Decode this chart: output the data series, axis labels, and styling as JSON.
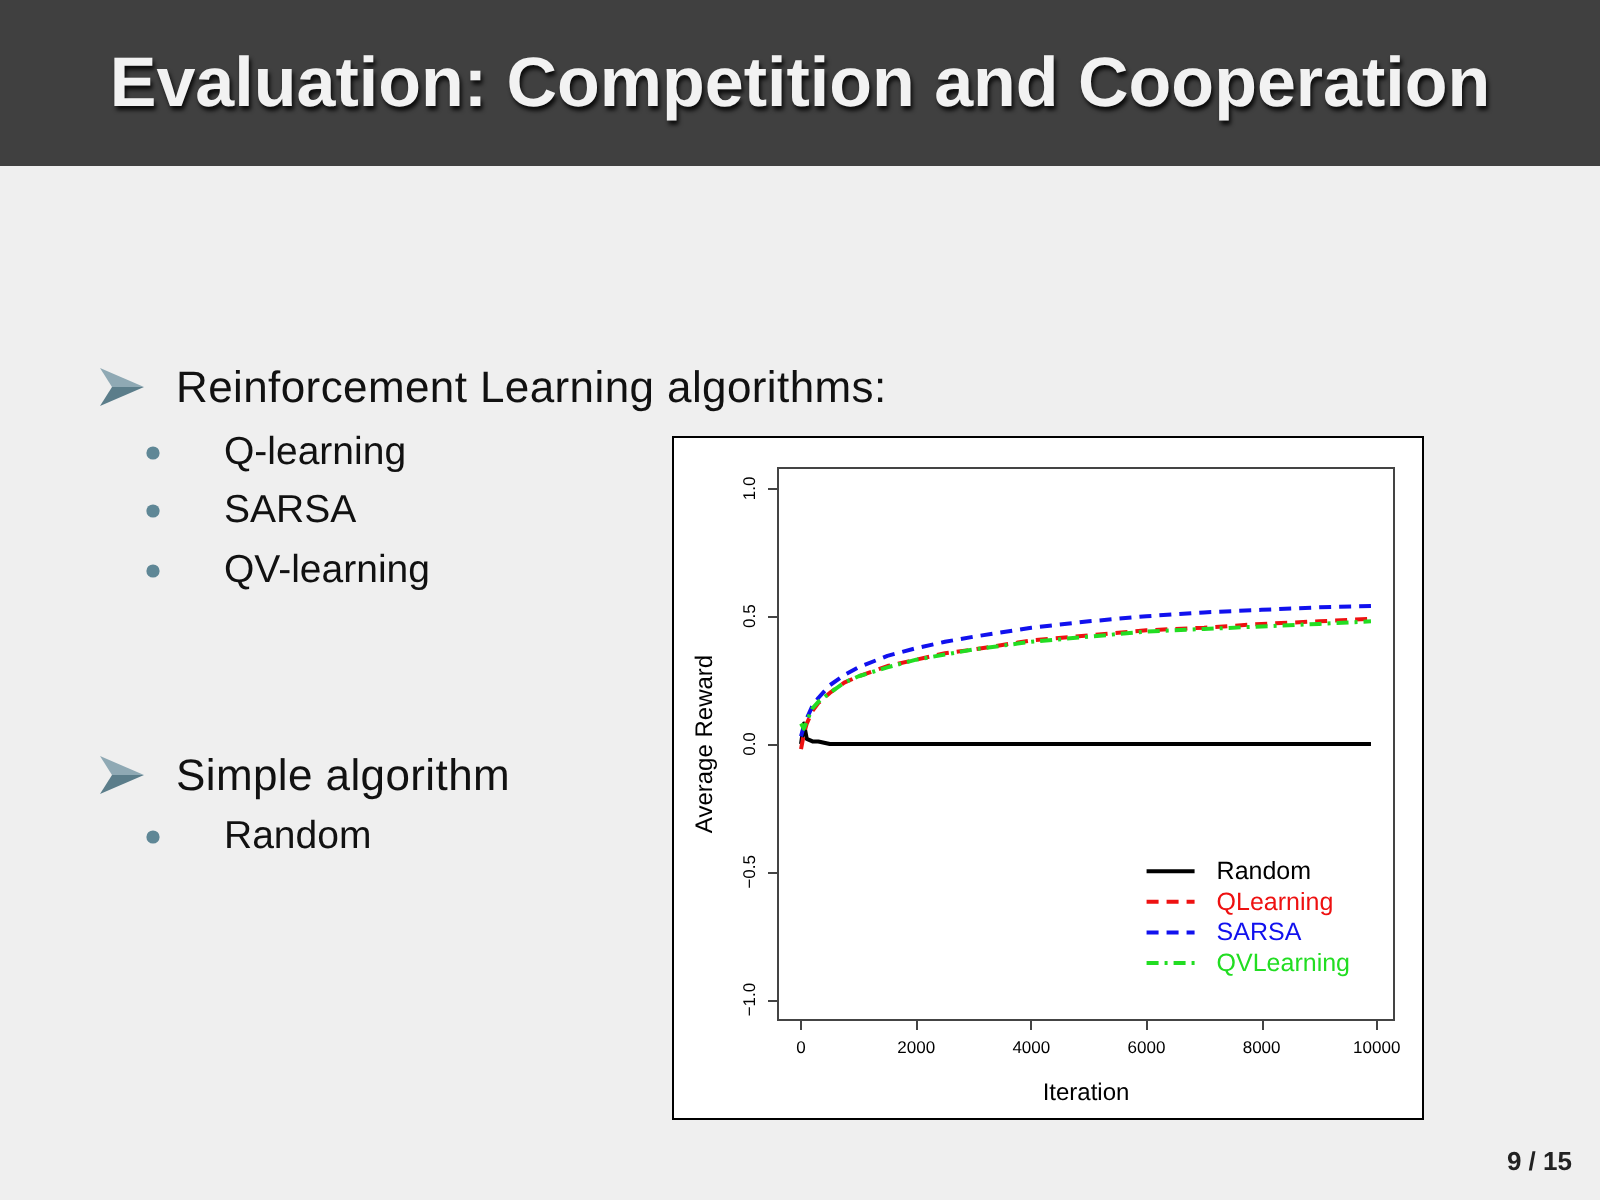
{
  "chart_data": {
    "type": "line",
    "title": "Evaluation: Competition and Cooperation",
    "xlabel": "Iteration",
    "ylabel": "Average Reward",
    "annotations": [
      "Reinforcement Learning algorithms:",
      "Q-learning",
      "SARSA",
      "QV-learning",
      "Simple algorithm",
      "Random",
      "9 / 15"
    ],
    "x": [
      0,
      50,
      100,
      200,
      300,
      500,
      750,
      1000,
      1500,
      2000,
      2500,
      3000,
      4000,
      5000,
      6000,
      7000,
      8000,
      9000,
      9900
    ],
    "series": [
      {
        "name": "Random",
        "color": "#000000",
        "line_style": "solid",
        "values": [
          0,
          0.08,
          0.02,
          0.01,
          0.01,
          0,
          0,
          0,
          0,
          0,
          0,
          0,
          0,
          0,
          0,
          0,
          0,
          0,
          0
        ]
      },
      {
        "name": "QLearning",
        "color": "#ee1111",
        "line_style": "dashed",
        "values": [
          -0.02,
          0.04,
          0.08,
          0.13,
          0.16,
          0.2,
          0.24,
          0.265,
          0.305,
          0.33,
          0.355,
          0.37,
          0.405,
          0.425,
          0.445,
          0.455,
          0.47,
          0.48,
          0.49
        ]
      },
      {
        "name": "SARSA",
        "color": "#1111ee",
        "line_style": "dashed",
        "values": [
          0.03,
          0.07,
          0.1,
          0.15,
          0.18,
          0.23,
          0.27,
          0.3,
          0.345,
          0.375,
          0.4,
          0.42,
          0.455,
          0.48,
          0.5,
          0.515,
          0.525,
          0.535,
          0.54
        ]
      },
      {
        "name": "QVLearning",
        "color": "#22dd22",
        "line_style": "dashdot",
        "values": [
          0.08,
          0.06,
          0.09,
          0.14,
          0.165,
          0.2,
          0.24,
          0.265,
          0.3,
          0.33,
          0.35,
          0.37,
          0.4,
          0.42,
          0.44,
          0.45,
          0.46,
          0.47,
          0.48
        ]
      }
    ],
    "xlim": [
      -400,
      10300
    ],
    "ylim": [
      -1.08,
      1.08
    ],
    "xticks": [
      0,
      2000,
      4000,
      6000,
      8000,
      10000
    ],
    "yticks": [
      {
        "value": -1,
        "label": "−1.0"
      },
      {
        "value": -0.5,
        "label": "−0.5"
      },
      {
        "value": 0,
        "label": "0.0"
      },
      {
        "value": 0.5,
        "label": "0.5"
      },
      {
        "value": 1,
        "label": "1.0"
      }
    ],
    "grid": false,
    "legend": "bottom right",
    "marker": "none"
  }
}
